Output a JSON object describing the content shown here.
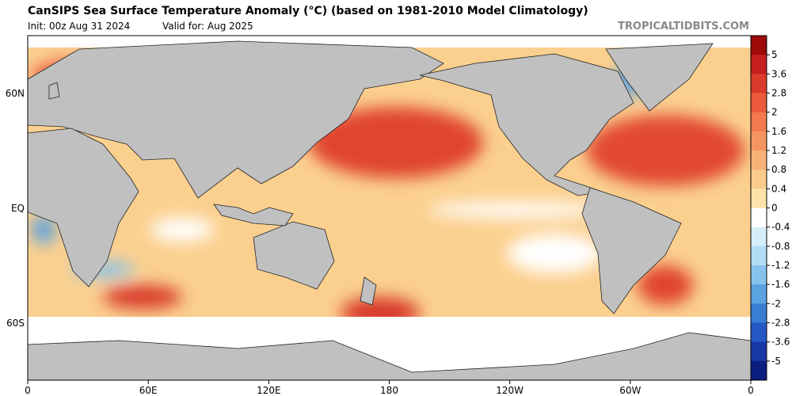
{
  "header": {
    "title": "CanSIPS Sea Surface Temperature Anomaly (°C) (based on 1981-2010 Model Climatology)",
    "init": "Init: 00z Aug 31 2024",
    "valid": "Valid for: Aug 2025",
    "site": "TROPICALTIDBITS.COM"
  },
  "map": {
    "lat_labels": [
      "60N",
      "EQ",
      "60S"
    ],
    "lon_labels": [
      "0",
      "60E",
      "120E",
      "180",
      "120W",
      "60W",
      "0"
    ]
  },
  "colorbar": {
    "ticks": [
      5,
      3.6,
      2.8,
      2,
      1.6,
      1.2,
      0.8,
      0.4,
      0,
      -0.4,
      -0.8,
      -1.2,
      -1.6,
      -2,
      -2.8,
      -3.6,
      -5
    ],
    "colors": [
      "#9e0a0a",
      "#c41e1e",
      "#dc3a2c",
      "#ec5a3c",
      "#f27a4c",
      "#f59660",
      "#f8b276",
      "#fbcb8e",
      "#fde3aa",
      "#ffffff",
      "#d6eefa",
      "#b2dcf4",
      "#86c2ec",
      "#5aa2e0",
      "#3a7ed4",
      "#2458c4",
      "#1838a8",
      "#0c1e80"
    ]
  }
}
